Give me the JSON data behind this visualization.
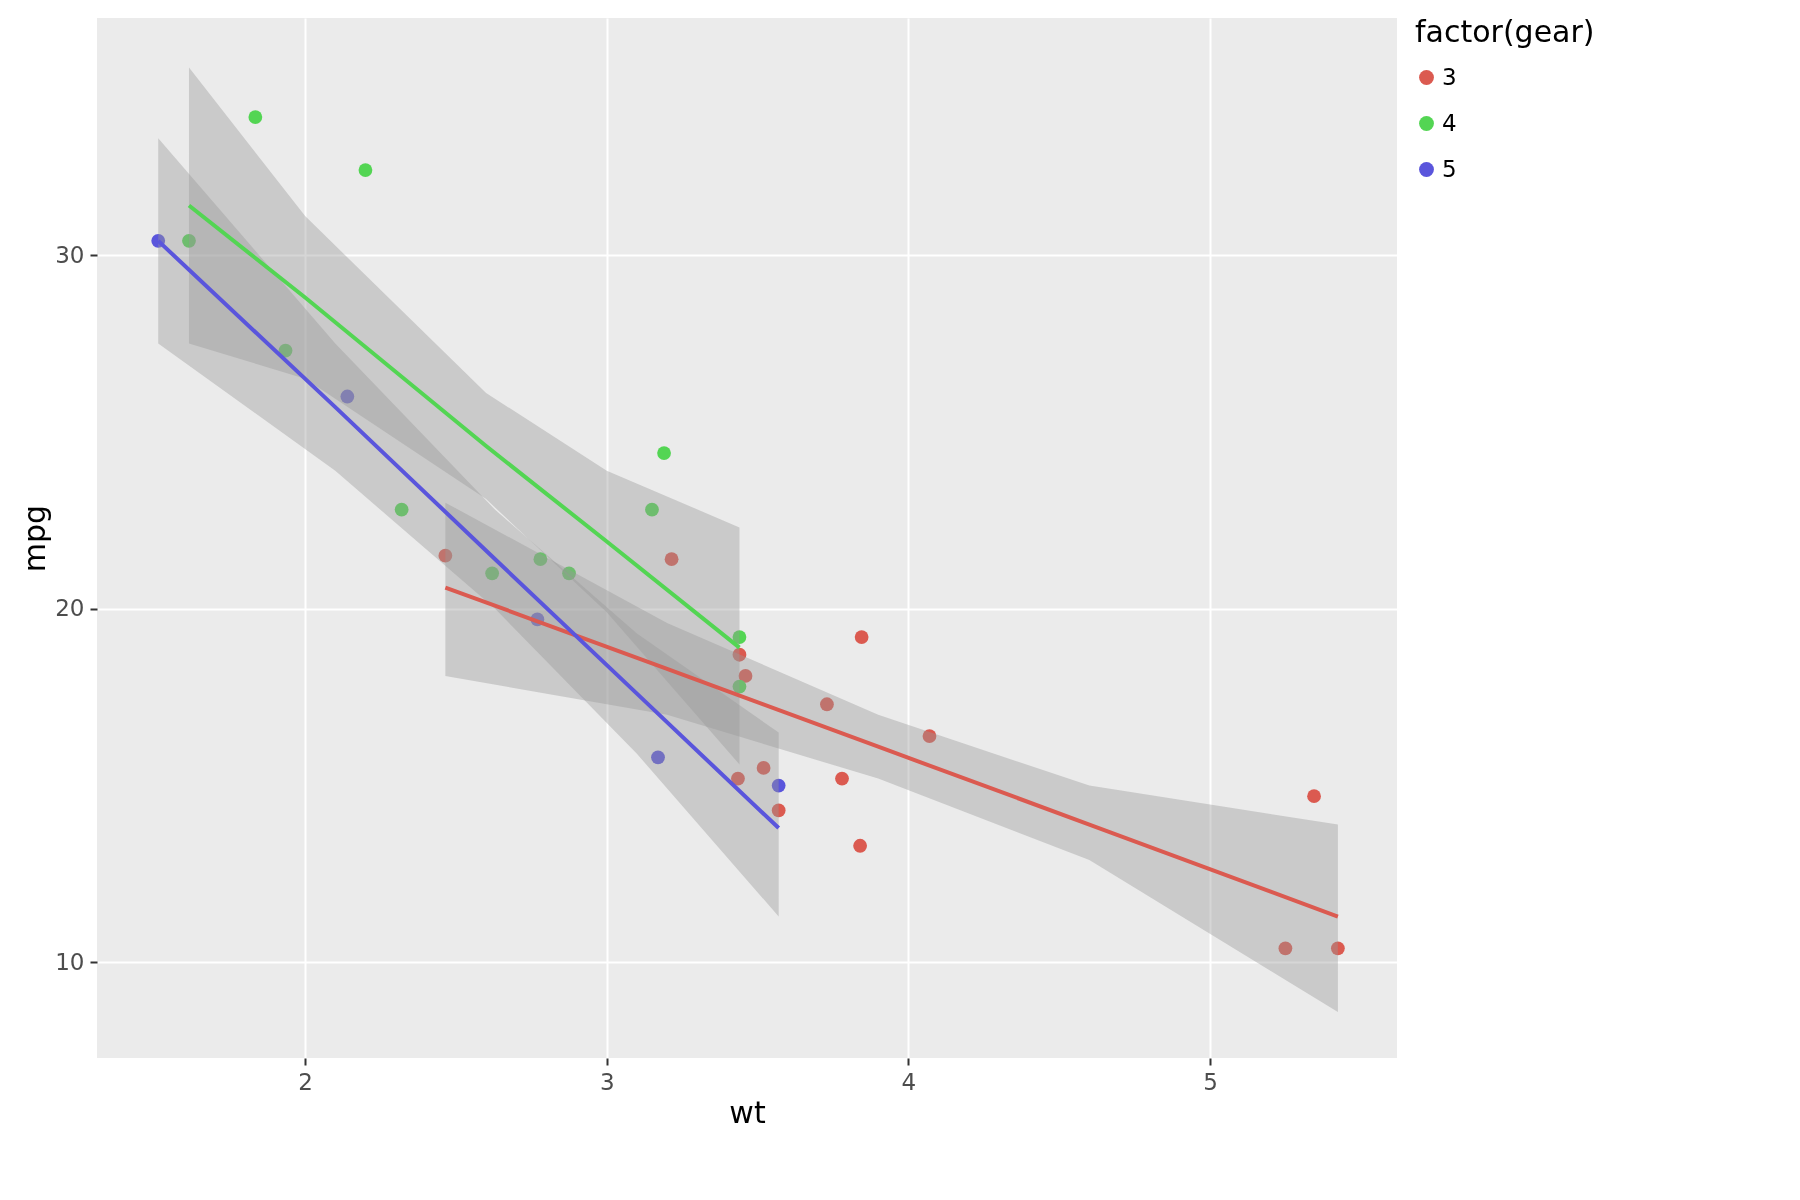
{
  "chart_data": {
    "type": "scatter",
    "xlabel": "wt",
    "ylabel": "mpg",
    "legend_title": "factor(gear)",
    "xlim": [
      1.31,
      5.62
    ],
    "ylim": [
      7.3,
      36.7
    ],
    "xticks": [
      2,
      3,
      4,
      5
    ],
    "yticks": [
      10,
      20,
      30
    ],
    "grid": true,
    "legend": "right",
    "series": [
      {
        "name": "3",
        "color": "#db5a50",
        "x": [
          3.215,
          3.44,
          3.46,
          3.57,
          4.07,
          3.73,
          3.78,
          5.25,
          5.424,
          5.345,
          2.465,
          3.52,
          3.435,
          3.84,
          3.845
        ],
        "values": [
          21.4,
          18.7,
          18.1,
          14.3,
          16.4,
          17.3,
          15.2,
          10.4,
          10.4,
          14.7,
          21.5,
          15.5,
          15.2,
          13.3,
          19.2
        ]
      },
      {
        "name": "4",
        "color": "#53d553",
        "x": [
          2.62,
          2.875,
          2.32,
          3.19,
          3.15,
          3.44,
          3.44,
          2.2,
          1.615,
          1.835,
          1.935,
          2.78
        ],
        "values": [
          21.0,
          21.0,
          22.8,
          24.4,
          22.8,
          19.2,
          17.8,
          32.4,
          30.4,
          33.9,
          27.3,
          21.4
        ]
      },
      {
        "name": "5",
        "color": "#5a55dc",
        "x": [
          2.14,
          1.513,
          3.17,
          2.77,
          3.57
        ],
        "values": [
          26.0,
          30.4,
          15.8,
          19.7,
          15.0
        ]
      },
      {
        "type": "line",
        "color": "#db5a50",
        "x": [
          2.465,
          3.2,
          3.9,
          4.6,
          5.424
        ],
        "values": [
          20.6,
          18.3,
          16.1,
          13.9,
          11.3
        ],
        "lower": [
          18.1,
          17.0,
          15.2,
          12.9,
          8.6
        ],
        "upper": [
          23.0,
          19.6,
          17.0,
          15.0,
          13.9
        ]
      },
      {
        "type": "line",
        "color": "#53d553",
        "x": [
          1.615,
          2.0,
          2.6,
          3.0,
          3.44
        ],
        "values": [
          31.4,
          28.8,
          24.6,
          21.9,
          18.9
        ],
        "lower": [
          27.5,
          26.5,
          23.1,
          19.9,
          15.6
        ],
        "upper": [
          35.3,
          31.1,
          26.1,
          23.9,
          22.3
        ]
      },
      {
        "type": "line",
        "color": "#5a55dc",
        "x": [
          1.513,
          2.1,
          2.63,
          3.1,
          3.57
        ],
        "values": [
          30.4,
          25.7,
          21.4,
          17.6,
          13.8
        ],
        "lower": [
          27.5,
          23.9,
          20.0,
          15.9,
          11.3
        ],
        "upper": [
          33.3,
          27.5,
          22.8,
          19.3,
          16.5
        ]
      }
    ]
  }
}
